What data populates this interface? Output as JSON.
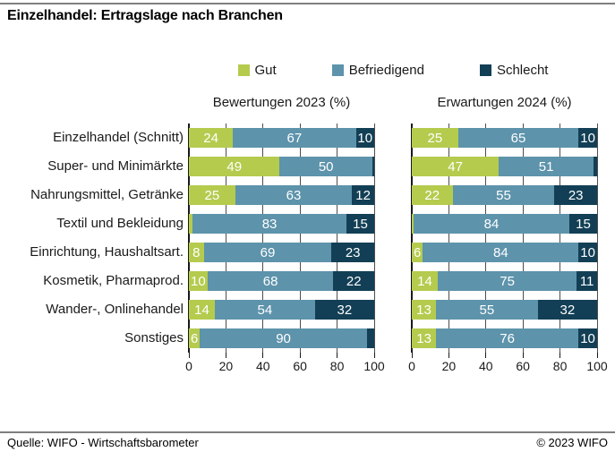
{
  "title": "Einzelhandel: Ertragslage nach Branchen",
  "legend": {
    "items": [
      {
        "label": "Gut",
        "color": "#b4cb4e"
      },
      {
        "label": "Befriedigend",
        "color": "#5d93ab"
      },
      {
        "label": "Schlecht",
        "color": "#123f55"
      }
    ]
  },
  "footer": {
    "source": "Quelle: WIFO - Wirtschaftsbarometer",
    "copyright": "© 2023 WIFO"
  },
  "colors": {
    "gut": "#b4cb4e",
    "befriedigend": "#5d93ab",
    "schlecht": "#123f55",
    "grid": "#4d4d4d",
    "axis": "#1a1a1a",
    "bar_label": "#ffffff",
    "rule": "#7f7f7f"
  },
  "chart_data": {
    "type": "bar",
    "orientation": "horizontal",
    "stacked": true,
    "grid": true,
    "legend_position": "top",
    "xlim": [
      0,
      100
    ],
    "xticks": [
      0,
      20,
      40,
      60,
      80,
      100
    ],
    "label_min_show": 5,
    "categories": [
      "Einzelhandel (Schnitt)",
      "Super- und Minimärkte",
      "Nahrungsmittel, Getränke",
      "Textil und Bekleidung",
      "Einrichtung, Haushaltsart.",
      "Kosmetik, Pharmaprod.",
      "Wander-, Onlinehandel",
      "Sonstiges"
    ],
    "panels": [
      {
        "title": "Bewertungen 2023 (%)",
        "series": [
          {
            "name": "Gut",
            "values": [
              24,
              49,
              25,
              2,
              8,
              10,
              14,
              6
            ]
          },
          {
            "name": "Befriedigend",
            "values": [
              67,
              50,
              63,
              83,
              69,
              68,
              54,
              90
            ]
          },
          {
            "name": "Schlecht",
            "values": [
              10,
              1,
              12,
              15,
              23,
              22,
              32,
              4
            ]
          }
        ]
      },
      {
        "title": "Erwartungen 2024 (%)",
        "series": [
          {
            "name": "Gut",
            "values": [
              25,
              47,
              22,
              1,
              6,
              14,
              13,
              13
            ]
          },
          {
            "name": "Befriedigend",
            "values": [
              65,
              51,
              55,
              84,
              84,
              75,
              55,
              76
            ]
          },
          {
            "name": "Schlecht",
            "values": [
              10,
              2,
              23,
              15,
              10,
              11,
              32,
              10
            ]
          }
        ]
      }
    ]
  }
}
